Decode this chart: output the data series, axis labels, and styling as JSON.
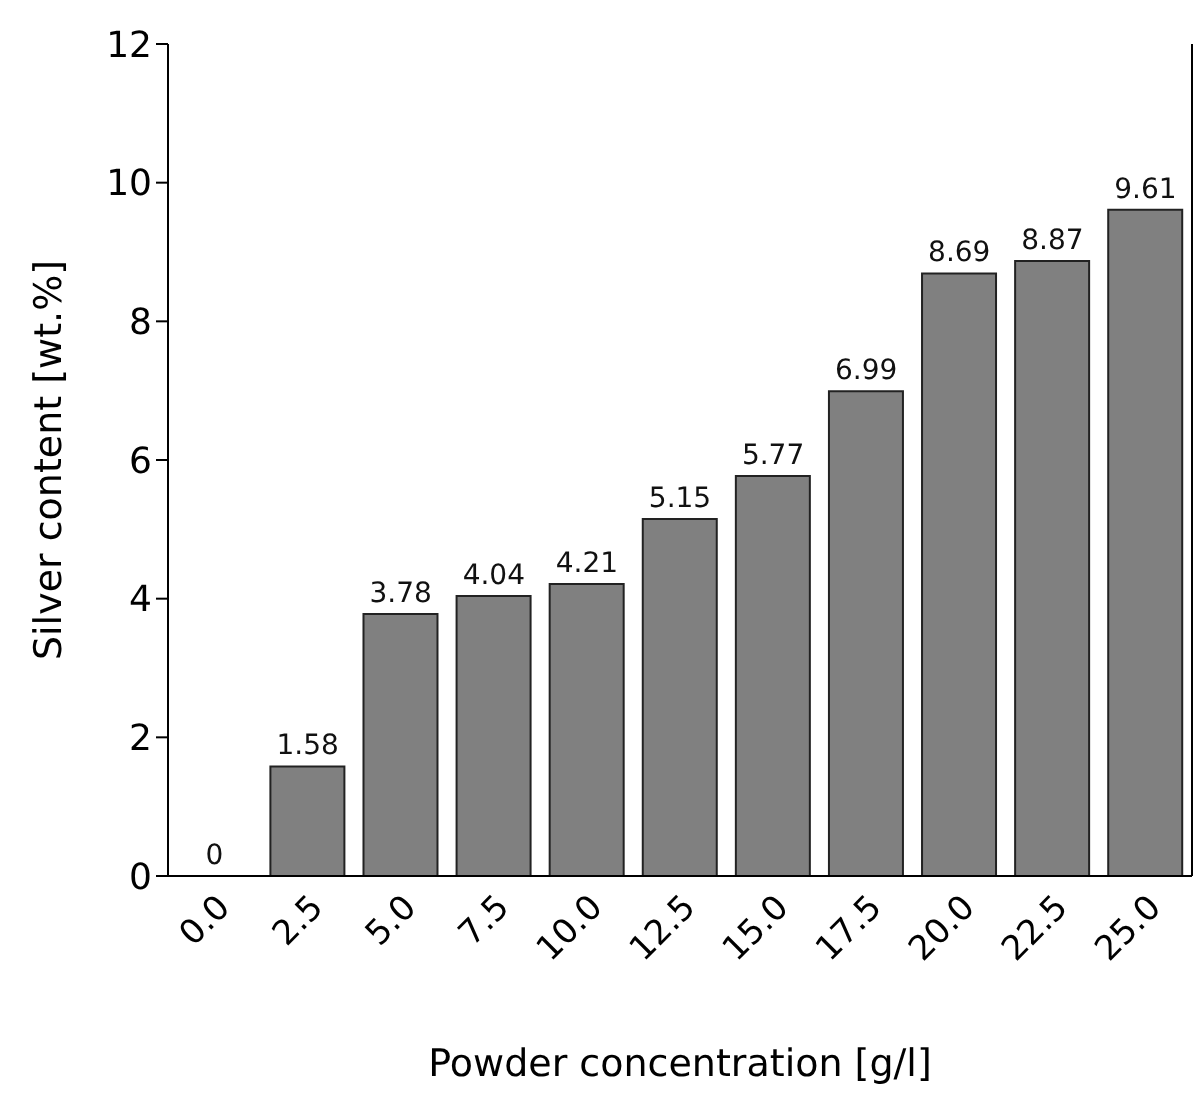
{
  "chart_data": {
    "type": "bar",
    "xlabel": "Powder concentration [g/l]",
    "ylabel": "Silver content [wt.%]",
    "categories": [
      "0.0",
      "2.5",
      "5.0",
      "7.5",
      "10.0",
      "12.5",
      "15.0",
      "17.5",
      "20.0",
      "22.5",
      "25.0"
    ],
    "values": [
      0,
      1.58,
      3.78,
      4.04,
      4.21,
      5.15,
      5.77,
      6.99,
      8.69,
      8.87,
      9.61
    ],
    "color": "#808080",
    "ylim": [
      0,
      12
    ],
    "yticks": [
      0,
      2,
      4,
      6,
      8,
      10,
      12
    ],
    "data_labels": true
  }
}
